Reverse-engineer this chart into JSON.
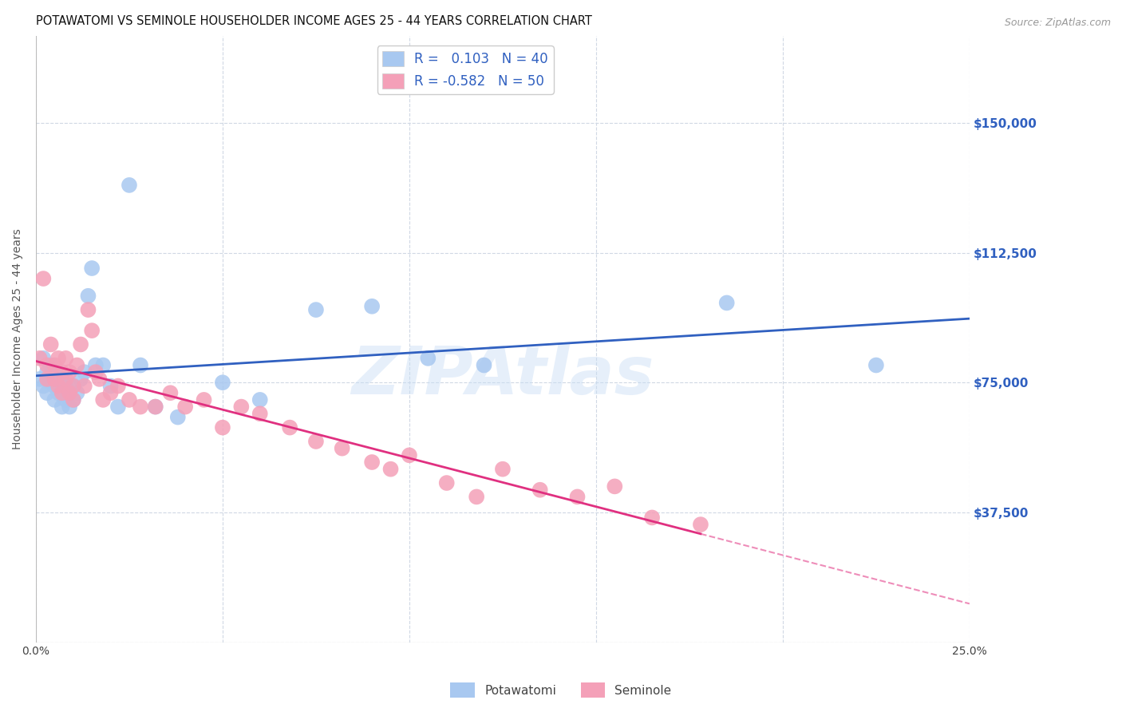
{
  "title": "POTAWATOMI VS SEMINOLE HOUSEHOLDER INCOME AGES 25 - 44 YEARS CORRELATION CHART",
  "source": "Source: ZipAtlas.com",
  "ylabel": "Householder Income Ages 25 - 44 years",
  "xlim": [
    0.0,
    0.25
  ],
  "ylim": [
    0,
    175000
  ],
  "yticks": [
    0,
    37500,
    75000,
    112500,
    150000
  ],
  "ytick_labels": [
    "",
    "$37,500",
    "$75,000",
    "$112,500",
    "$150,000"
  ],
  "bg_color": "#ffffff",
  "grid_color": "#d0d8e4",
  "potawatomi_color": "#a8c8f0",
  "seminole_color": "#f4a0b8",
  "potawatomi_line_color": "#3060c0",
  "seminole_line_color": "#e03080",
  "R_potawatomi": 0.103,
  "N_potawatomi": 40,
  "R_seminole": -0.582,
  "N_seminole": 50,
  "watermark": "ZIPAtlas",
  "potawatomi_x": [
    0.001,
    0.002,
    0.002,
    0.003,
    0.003,
    0.004,
    0.004,
    0.005,
    0.005,
    0.006,
    0.006,
    0.007,
    0.007,
    0.008,
    0.008,
    0.009,
    0.009,
    0.01,
    0.01,
    0.011,
    0.012,
    0.013,
    0.014,
    0.015,
    0.016,
    0.018,
    0.02,
    0.022,
    0.025,
    0.028,
    0.032,
    0.038,
    0.05,
    0.06,
    0.075,
    0.09,
    0.105,
    0.12,
    0.185,
    0.225
  ],
  "potawatomi_y": [
    76000,
    82000,
    74000,
    78000,
    72000,
    80000,
    76000,
    74000,
    70000,
    78000,
    72000,
    68000,
    76000,
    74000,
    70000,
    72000,
    68000,
    74000,
    70000,
    72000,
    76000,
    78000,
    100000,
    108000,
    80000,
    80000,
    74000,
    68000,
    132000,
    80000,
    68000,
    65000,
    75000,
    70000,
    96000,
    97000,
    82000,
    80000,
    98000,
    80000
  ],
  "seminole_x": [
    0.001,
    0.002,
    0.003,
    0.003,
    0.004,
    0.005,
    0.005,
    0.006,
    0.006,
    0.007,
    0.007,
    0.008,
    0.008,
    0.009,
    0.009,
    0.01,
    0.01,
    0.011,
    0.012,
    0.013,
    0.014,
    0.015,
    0.016,
    0.017,
    0.018,
    0.02,
    0.022,
    0.025,
    0.028,
    0.032,
    0.036,
    0.04,
    0.045,
    0.05,
    0.055,
    0.06,
    0.068,
    0.075,
    0.082,
    0.09,
    0.095,
    0.1,
    0.11,
    0.118,
    0.125,
    0.135,
    0.145,
    0.155,
    0.165,
    0.178
  ],
  "seminole_y": [
    82000,
    105000,
    80000,
    76000,
    86000,
    80000,
    76000,
    82000,
    74000,
    78000,
    72000,
    76000,
    82000,
    78000,
    72000,
    74000,
    70000,
    80000,
    86000,
    74000,
    96000,
    90000,
    78000,
    76000,
    70000,
    72000,
    74000,
    70000,
    68000,
    68000,
    72000,
    68000,
    70000,
    62000,
    68000,
    66000,
    62000,
    58000,
    56000,
    52000,
    50000,
    54000,
    46000,
    42000,
    50000,
    44000,
    42000,
    45000,
    36000,
    34000
  ]
}
